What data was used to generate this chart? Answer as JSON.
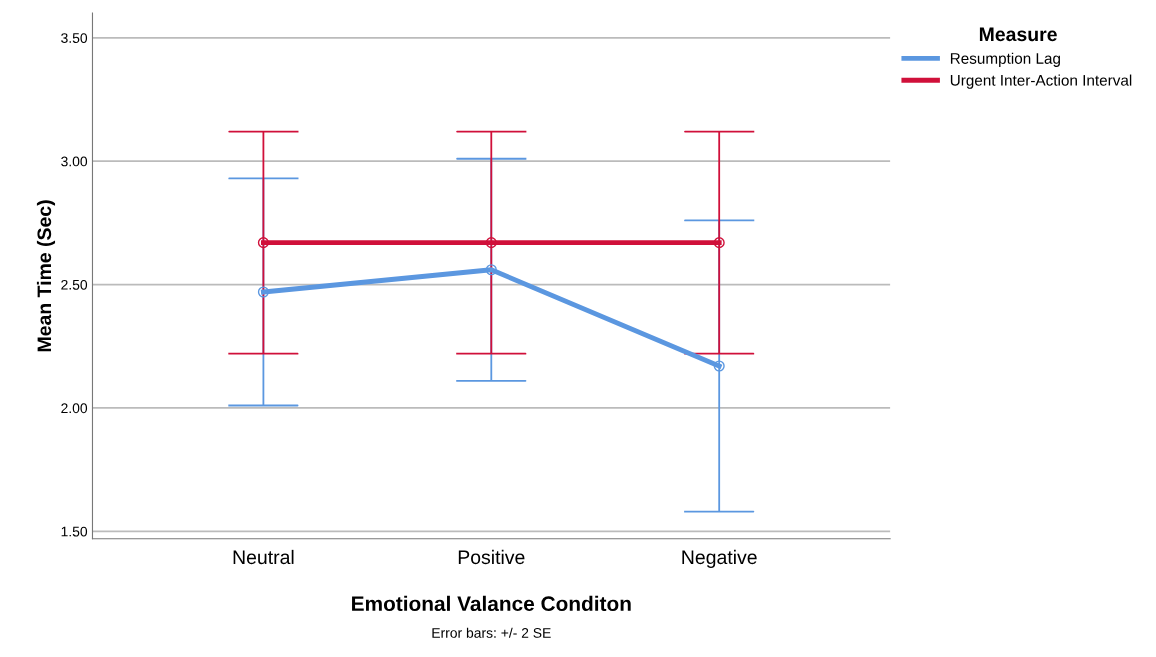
{
  "chart_data": {
    "type": "line",
    "xlabel": "Emotional Valance Conditon",
    "ylabel": "Mean Time (Sec)",
    "legend_title": "Measure",
    "categories": [
      "Neutral",
      "Positive",
      "Negative"
    ],
    "series": [
      {
        "name": "Resumption Lag",
        "color": "#5b97e0",
        "values": [
          2.47,
          2.56,
          2.17
        ],
        "errors": [
          0.46,
          0.45,
          0.59
        ]
      },
      {
        "name": "Urgent Inter-Action Interval",
        "color": "#d0103a",
        "values": [
          2.67,
          2.67,
          2.67
        ],
        "errors": [
          0.45,
          0.45,
          0.45
        ]
      }
    ],
    "ylim": [
      1.47,
      3.6
    ],
    "yticks": [
      {
        "value": 1.5,
        "label": "1.50"
      },
      {
        "value": 2.0,
        "label": "2.00"
      },
      {
        "value": 2.5,
        "label": "2.50"
      },
      {
        "value": 3.0,
        "label": "3.00"
      },
      {
        "value": 3.5,
        "label": "3.50"
      }
    ],
    "grid": "y",
    "legend": "top right",
    "marker": "circle",
    "line_style": "solid",
    "annotations": [
      "Error bars: +/- 2 SE"
    ]
  }
}
